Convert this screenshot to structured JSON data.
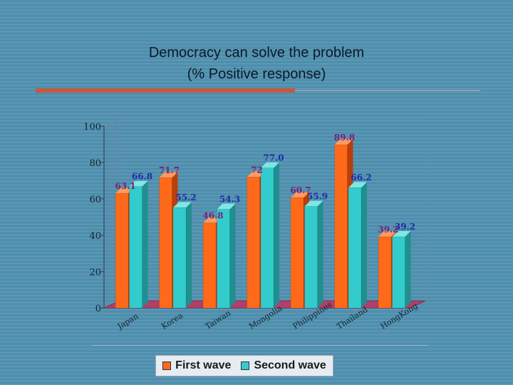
{
  "title_line1": "Democracy can solve the problem",
  "title_line2": "(% Positive response)",
  "legend": [
    {
      "name": "First wave",
      "color": "#ff6a1a"
    },
    {
      "name": "Second wave",
      "color": "#33cccc"
    }
  ],
  "chart_data": {
    "type": "bar",
    "title": "Democracy can solve the problem (% Positive response)",
    "categories": [
      "Japan",
      "Korea",
      "Taiwan",
      "Mongolia",
      "Philippines",
      "Thailand",
      "HongKong"
    ],
    "series": [
      {
        "name": "First wave",
        "values": [
          63.1,
          71.7,
          46.8,
          72,
          60.7,
          89.8,
          39.2
        ],
        "labels": [
          "63.1",
          "71.7",
          "46.8",
          "72",
          "60.7",
          "89.8",
          "39.2"
        ]
      },
      {
        "name": "Second wave",
        "values": [
          66.8,
          55.2,
          54.3,
          77.0,
          55.9,
          66.2,
          39.2
        ],
        "labels": [
          "66.8",
          "55.2",
          "54.3",
          "77.0",
          "55.9",
          "66.2",
          "39.2"
        ]
      }
    ],
    "ylim": [
      0,
      100
    ],
    "yticks": [
      "0",
      "20",
      "40",
      "60",
      "80",
      "100"
    ],
    "grid": false,
    "legend_position": "bottom"
  }
}
